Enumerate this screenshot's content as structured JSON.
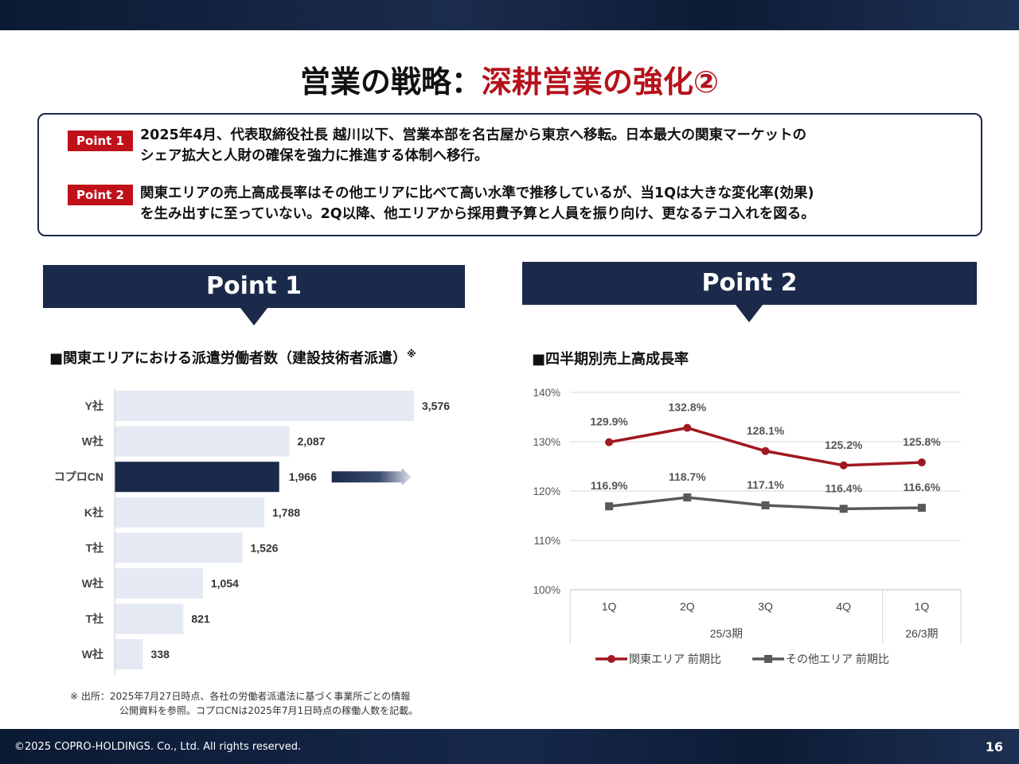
{
  "header": {
    "title_main": "営業の戦略：",
    "title_accent": "深耕営業の強化②"
  },
  "points": [
    {
      "badge": "Point 1",
      "line1": "2025年4月、代表取締役社長 越川以下、営業本部を名古屋から東京へ移転。日本最大の関東マーケットの",
      "line2": "シェア拡大と人財の確保を強力に推進する体制へ移行。"
    },
    {
      "badge": "Point 2",
      "line1": "関東エリアの売上高成長率はその他エリアに比べて高い水準で推移しているが、当1Qは大きな変化率(効果)",
      "line2": "を生み出すに至っていない。2Q以降、他エリアから採用費予算と人員を振り向け、更なるテコ入れを図る。"
    }
  ],
  "banners": {
    "left": "Point 1",
    "right": "Point 2"
  },
  "chart_data": [
    {
      "type": "bar",
      "orientation": "horizontal",
      "title": "■関東エリアにおける派遣労働者数（建設技術者派遣）",
      "title_mark": "※",
      "categories": [
        "Y社",
        "W社",
        "コプロCN",
        "K社",
        "T社",
        "W社",
        "T社",
        "W社"
      ],
      "values": [
        3576,
        2087,
        1966,
        1788,
        1526,
        1054,
        821,
        338
      ],
      "value_labels": [
        "3,576",
        "2,087",
        "1,966",
        "1,788",
        "1,526",
        "1,054",
        "821",
        "338"
      ],
      "highlight_index": 2,
      "xlim": [
        0,
        4000
      ],
      "colors": {
        "bar": "#e4e9f4",
        "highlight": "#1b2a4a",
        "axis": "#cccccc"
      }
    },
    {
      "type": "line",
      "title": "■四半期別売上高成長率",
      "categories": [
        "1Q",
        "2Q",
        "3Q",
        "4Q",
        "1Q"
      ],
      "groups": [
        {
          "label": "25/3期",
          "span": 4
        },
        {
          "label": "26/3期",
          "span": 1
        }
      ],
      "yticks": [
        "140%",
        "130%",
        "120%",
        "110%",
        "100%"
      ],
      "ylim": [
        100,
        140
      ],
      "grid": true,
      "legend_position": "bottom",
      "series": [
        {
          "name": "関東エリア 前期比",
          "values": [
            129.9,
            132.8,
            128.1,
            125.2,
            125.8
          ],
          "labels": [
            "129.9%",
            "132.8%",
            "128.1%",
            "125.2%",
            "125.8%"
          ],
          "color": "#a01820",
          "marker": "circle"
        },
        {
          "name": "その他エリア 前期比",
          "values": [
            116.9,
            118.7,
            117.1,
            116.4,
            116.6
          ],
          "labels": [
            "116.9%",
            "118.7%",
            "117.1%",
            "116.4%",
            "116.6%"
          ],
          "color": "#595959",
          "marker": "square"
        }
      ]
    }
  ],
  "footnote": {
    "line1": "※ 出所：2025年7月27日時点、各社の労働者派遣法に基づく事業所ごとの情報",
    "line2": "公開資料を参照。コプロCNは2025年7月1日時点の稼働人数を記載。"
  },
  "footer": {
    "copyright": "©2025 COPRO-HOLDINGS. Co., Ltd. All rights reserved.",
    "page": "16"
  }
}
